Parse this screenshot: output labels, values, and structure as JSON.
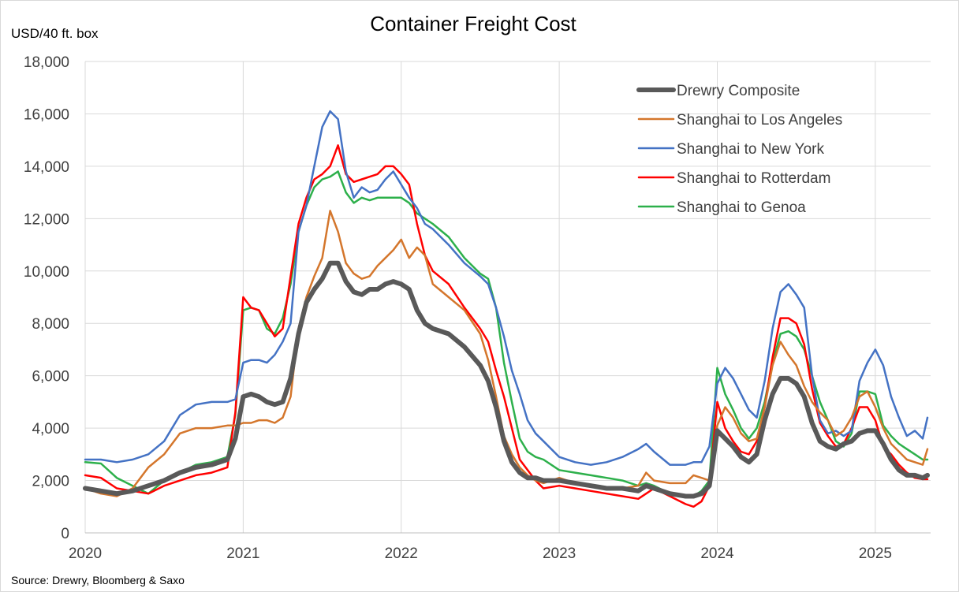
{
  "chart_data": {
    "type": "line",
    "title": "Container Freight Cost",
    "ylabel": "USD/40 ft. box",
    "xlabel": "",
    "source": "Source: Drewry, Bloomberg & Saxo",
    "ylim": [
      0,
      18000
    ],
    "xlim": [
      2020,
      2025.35
    ],
    "yticks": [
      0,
      2000,
      4000,
      6000,
      8000,
      10000,
      12000,
      14000,
      16000,
      18000
    ],
    "ytick_labels": [
      "0",
      "2,000",
      "4,000",
      "6,000",
      "8,000",
      "10,000",
      "12,000",
      "14,000",
      "16,000",
      "18,000"
    ],
    "xticks": [
      2020,
      2021,
      2022,
      2023,
      2024,
      2025
    ],
    "xtick_labels": [
      "2020",
      "2021",
      "2022",
      "2023",
      "2024",
      "2025"
    ],
    "grid": true,
    "legend_position": "top-right",
    "series": [
      {
        "name": "Shanghai to Genoa",
        "color": "#2db04b",
        "width": 2.5,
        "x": [
          2020.0,
          2020.1,
          2020.2,
          2020.3,
          2020.4,
          2020.5,
          2020.6,
          2020.7,
          2020.8,
          2020.9,
          2020.95,
          2021.0,
          2021.05,
          2021.1,
          2021.15,
          2021.2,
          2021.25,
          2021.3,
          2021.35,
          2021.4,
          2021.45,
          2021.5,
          2021.55,
          2021.6,
          2021.65,
          2021.7,
          2021.75,
          2021.8,
          2021.85,
          2021.9,
          2021.95,
          2022.0,
          2022.05,
          2022.1,
          2022.15,
          2022.2,
          2022.3,
          2022.4,
          2022.5,
          2022.55,
          2022.6,
          2022.65,
          2022.7,
          2022.75,
          2022.8,
          2022.85,
          2022.9,
          2023.0,
          2023.1,
          2023.2,
          2023.3,
          2023.4,
          2023.5,
          2023.55,
          2023.6,
          2023.7,
          2023.8,
          2023.85,
          2023.9,
          2023.95,
          2024.0,
          2024.05,
          2024.1,
          2024.15,
          2024.2,
          2024.25,
          2024.3,
          2024.35,
          2024.4,
          2024.45,
          2024.5,
          2024.55,
          2024.6,
          2024.65,
          2024.7,
          2024.75,
          2024.8,
          2024.85,
          2024.9,
          2024.95,
          2025.0,
          2025.05,
          2025.1,
          2025.15,
          2025.2,
          2025.25,
          2025.3,
          2025.33
        ],
        "y": [
          2700,
          2650,
          2100,
          1800,
          1500,
          2000,
          2300,
          2600,
          2700,
          2900,
          4500,
          8500,
          8600,
          8500,
          7800,
          7600,
          8200,
          9500,
          11500,
          12500,
          13200,
          13500,
          13600,
          13800,
          13000,
          12600,
          12800,
          12700,
          12800,
          12800,
          12800,
          12800,
          12600,
          12200,
          12000,
          11800,
          11300,
          10500,
          9900,
          9700,
          8600,
          6500,
          5000,
          3600,
          3100,
          2900,
          2800,
          2400,
          2300,
          2200,
          2100,
          2000,
          1800,
          1900,
          1800,
          1500,
          1400,
          1400,
          1600,
          2000,
          6300,
          5300,
          4700,
          4000,
          3600,
          4000,
          5000,
          6500,
          7600,
          7700,
          7500,
          7000,
          6000,
          5000,
          4300,
          3500,
          3300,
          3800,
          5400,
          5400,
          5300,
          4100,
          3700,
          3400,
          3200,
          3000,
          2800,
          2800
        ]
      },
      {
        "name": "Shanghai to Rotterdam",
        "color": "#ff0000",
        "width": 2.5,
        "x": [
          2020.0,
          2020.1,
          2020.2,
          2020.3,
          2020.4,
          2020.5,
          2020.6,
          2020.7,
          2020.8,
          2020.9,
          2020.95,
          2021.0,
          2021.05,
          2021.1,
          2021.15,
          2021.2,
          2021.25,
          2021.3,
          2021.35,
          2021.4,
          2021.45,
          2021.5,
          2021.55,
          2021.6,
          2021.65,
          2021.7,
          2021.75,
          2021.8,
          2021.85,
          2021.9,
          2021.95,
          2022.0,
          2022.05,
          2022.1,
          2022.15,
          2022.2,
          2022.3,
          2022.4,
          2022.5,
          2022.55,
          2022.6,
          2022.65,
          2022.7,
          2022.75,
          2022.8,
          2022.85,
          2022.9,
          2023.0,
          2023.1,
          2023.2,
          2023.3,
          2023.4,
          2023.5,
          2023.55,
          2023.6,
          2023.7,
          2023.8,
          2023.85,
          2023.9,
          2023.95,
          2024.0,
          2024.05,
          2024.1,
          2024.15,
          2024.2,
          2024.25,
          2024.3,
          2024.35,
          2024.4,
          2024.45,
          2024.5,
          2024.55,
          2024.6,
          2024.65,
          2024.7,
          2024.75,
          2024.8,
          2024.85,
          2024.9,
          2024.95,
          2025.0,
          2025.05,
          2025.1,
          2025.15,
          2025.2,
          2025.25,
          2025.3,
          2025.33
        ],
        "y": [
          2200,
          2100,
          1700,
          1600,
          1500,
          1800,
          2000,
          2200,
          2300,
          2500,
          4600,
          9000,
          8600,
          8500,
          8000,
          7500,
          7800,
          9800,
          11800,
          12800,
          13500,
          13700,
          14000,
          14800,
          13700,
          13400,
          13500,
          13600,
          13700,
          14000,
          14000,
          13700,
          13300,
          11800,
          10600,
          10000,
          9500,
          8600,
          7800,
          7300,
          6200,
          5200,
          4000,
          2800,
          2400,
          2000,
          1700,
          1800,
          1700,
          1600,
          1500,
          1400,
          1300,
          1500,
          1700,
          1400,
          1100,
          1000,
          1200,
          1800,
          5000,
          4000,
          3500,
          3100,
          3000,
          3500,
          4800,
          6700,
          8200,
          8200,
          8000,
          7200,
          5500,
          4200,
          3700,
          3300,
          3400,
          4000,
          4800,
          4800,
          4300,
          3300,
          3000,
          2600,
          2300,
          2100,
          2050,
          2050
        ]
      },
      {
        "name": "Shanghai to New York",
        "color": "#4472c4",
        "width": 2.5,
        "x": [
          2020.0,
          2020.1,
          2020.2,
          2020.3,
          2020.4,
          2020.5,
          2020.6,
          2020.7,
          2020.8,
          2020.9,
          2020.95,
          2021.0,
          2021.05,
          2021.1,
          2021.15,
          2021.2,
          2021.25,
          2021.3,
          2021.35,
          2021.4,
          2021.45,
          2021.5,
          2021.55,
          2021.6,
          2021.65,
          2021.7,
          2021.75,
          2021.8,
          2021.85,
          2021.9,
          2021.95,
          2022.0,
          2022.05,
          2022.1,
          2022.15,
          2022.2,
          2022.3,
          2022.4,
          2022.5,
          2022.55,
          2022.6,
          2022.65,
          2022.7,
          2022.75,
          2022.8,
          2022.85,
          2022.9,
          2023.0,
          2023.1,
          2023.2,
          2023.3,
          2023.4,
          2023.5,
          2023.55,
          2023.6,
          2023.7,
          2023.8,
          2023.85,
          2023.9,
          2023.95,
          2024.0,
          2024.05,
          2024.1,
          2024.15,
          2024.2,
          2024.25,
          2024.3,
          2024.35,
          2024.4,
          2024.45,
          2024.5,
          2024.55,
          2024.6,
          2024.65,
          2024.7,
          2024.75,
          2024.8,
          2024.85,
          2024.9,
          2024.95,
          2025.0,
          2025.05,
          2025.1,
          2025.15,
          2025.2,
          2025.25,
          2025.3,
          2025.33
        ],
        "y": [
          2800,
          2800,
          2700,
          2800,
          3000,
          3500,
          4500,
          4900,
          5000,
          5000,
          5100,
          6500,
          6600,
          6600,
          6500,
          6800,
          7300,
          8000,
          11500,
          12500,
          14000,
          15500,
          16100,
          15800,
          13800,
          12800,
          13200,
          13000,
          13100,
          13500,
          13800,
          13300,
          12800,
          12400,
          11800,
          11600,
          11000,
          10300,
          9800,
          9500,
          8600,
          7500,
          6200,
          5300,
          4300,
          3800,
          3500,
          2900,
          2700,
          2600,
          2700,
          2900,
          3200,
          3400,
          3100,
          2600,
          2600,
          2700,
          2700,
          3300,
          5700,
          6300,
          5900,
          5300,
          4700,
          4400,
          5800,
          7800,
          9200,
          9500,
          9100,
          8600,
          6000,
          4300,
          3800,
          3900,
          3700,
          3900,
          5800,
          6500,
          7000,
          6400,
          5200,
          4400,
          3700,
          3900,
          3600,
          4400
        ]
      },
      {
        "name": "Shanghai to Los Angeles",
        "color": "#d4762c",
        "width": 2.5,
        "x": [
          2020.0,
          2020.1,
          2020.2,
          2020.3,
          2020.4,
          2020.5,
          2020.6,
          2020.7,
          2020.8,
          2020.9,
          2020.95,
          2021.0,
          2021.05,
          2021.1,
          2021.15,
          2021.2,
          2021.25,
          2021.3,
          2021.35,
          2021.4,
          2021.45,
          2021.5,
          2021.55,
          2021.6,
          2021.65,
          2021.7,
          2021.75,
          2021.8,
          2021.85,
          2021.9,
          2021.95,
          2022.0,
          2022.05,
          2022.1,
          2022.15,
          2022.2,
          2022.3,
          2022.4,
          2022.5,
          2022.55,
          2022.6,
          2022.65,
          2022.7,
          2022.75,
          2022.8,
          2022.85,
          2022.9,
          2023.0,
          2023.1,
          2023.2,
          2023.3,
          2023.4,
          2023.5,
          2023.55,
          2023.6,
          2023.7,
          2023.8,
          2023.85,
          2023.9,
          2023.95,
          2024.0,
          2024.05,
          2024.1,
          2024.15,
          2024.2,
          2024.25,
          2024.3,
          2024.35,
          2024.4,
          2024.45,
          2024.5,
          2024.55,
          2024.6,
          2024.65,
          2024.7,
          2024.75,
          2024.8,
          2024.85,
          2024.9,
          2024.95,
          2025.0,
          2025.05,
          2025.1,
          2025.15,
          2025.2,
          2025.25,
          2025.3,
          2025.33
        ],
        "y": [
          1700,
          1500,
          1400,
          1700,
          2500,
          3000,
          3800,
          4000,
          4000,
          4100,
          4100,
          4200,
          4200,
          4300,
          4300,
          4200,
          4400,
          5200,
          7800,
          9000,
          9800,
          10500,
          12300,
          11500,
          10300,
          9900,
          9700,
          9800,
          10200,
          10500,
          10800,
          11200,
          10500,
          10900,
          10600,
          9500,
          9000,
          8500,
          7600,
          6600,
          5200,
          3700,
          3000,
          2500,
          2200,
          2000,
          1900,
          2100,
          1900,
          1800,
          1700,
          1700,
          1800,
          2300,
          2000,
          1900,
          1900,
          2200,
          2100,
          2000,
          4100,
          4800,
          4400,
          3800,
          3500,
          3600,
          4800,
          6400,
          7300,
          6800,
          6400,
          5600,
          5000,
          4600,
          4300,
          3700,
          3900,
          4400,
          5200,
          5400,
          4800,
          4000,
          3400,
          3100,
          2800,
          2700,
          2600,
          3200
        ]
      },
      {
        "name": "Drewry Composite",
        "color": "#595959",
        "width": 6,
        "x": [
          2020.0,
          2020.1,
          2020.2,
          2020.3,
          2020.4,
          2020.5,
          2020.6,
          2020.7,
          2020.8,
          2020.9,
          2020.95,
          2021.0,
          2021.05,
          2021.1,
          2021.15,
          2021.2,
          2021.25,
          2021.3,
          2021.35,
          2021.4,
          2021.45,
          2021.5,
          2021.55,
          2021.6,
          2021.65,
          2021.7,
          2021.75,
          2021.8,
          2021.85,
          2021.9,
          2021.95,
          2022.0,
          2022.05,
          2022.1,
          2022.15,
          2022.2,
          2022.3,
          2022.4,
          2022.5,
          2022.55,
          2022.6,
          2022.65,
          2022.7,
          2022.75,
          2022.8,
          2022.85,
          2022.9,
          2023.0,
          2023.1,
          2023.2,
          2023.3,
          2023.4,
          2023.5,
          2023.55,
          2023.6,
          2023.7,
          2023.8,
          2023.85,
          2023.9,
          2023.95,
          2024.0,
          2024.05,
          2024.1,
          2024.15,
          2024.2,
          2024.25,
          2024.3,
          2024.35,
          2024.4,
          2024.45,
          2024.5,
          2024.55,
          2024.6,
          2024.65,
          2024.7,
          2024.75,
          2024.8,
          2024.85,
          2024.9,
          2024.95,
          2025.0,
          2025.05,
          2025.1,
          2025.15,
          2025.2,
          2025.25,
          2025.3,
          2025.33
        ],
        "y": [
          1700,
          1600,
          1500,
          1600,
          1800,
          2000,
          2300,
          2500,
          2600,
          2800,
          3600,
          5200,
          5300,
          5200,
          5000,
          4900,
          5000,
          5900,
          7600,
          8800,
          9300,
          9700,
          10300,
          10300,
          9600,
          9200,
          9100,
          9300,
          9300,
          9500,
          9600,
          9500,
          9300,
          8500,
          8000,
          7800,
          7600,
          7100,
          6400,
          5800,
          4800,
          3500,
          2700,
          2300,
          2100,
          2100,
          2000,
          2000,
          1900,
          1800,
          1700,
          1700,
          1600,
          1800,
          1700,
          1500,
          1400,
          1400,
          1500,
          1800,
          3900,
          3600,
          3300,
          2900,
          2700,
          3000,
          4300,
          5300,
          5900,
          5900,
          5700,
          5200,
          4200,
          3500,
          3300,
          3200,
          3400,
          3500,
          3800,
          3900,
          3900,
          3400,
          2800,
          2400,
          2200,
          2200,
          2100,
          2200
        ]
      }
    ],
    "legend_order": [
      "Drewry Composite",
      "Shanghai to Los Angeles",
      "Shanghai to New York",
      "Shanghai to Rotterdam",
      "Shanghai to Genoa"
    ]
  }
}
